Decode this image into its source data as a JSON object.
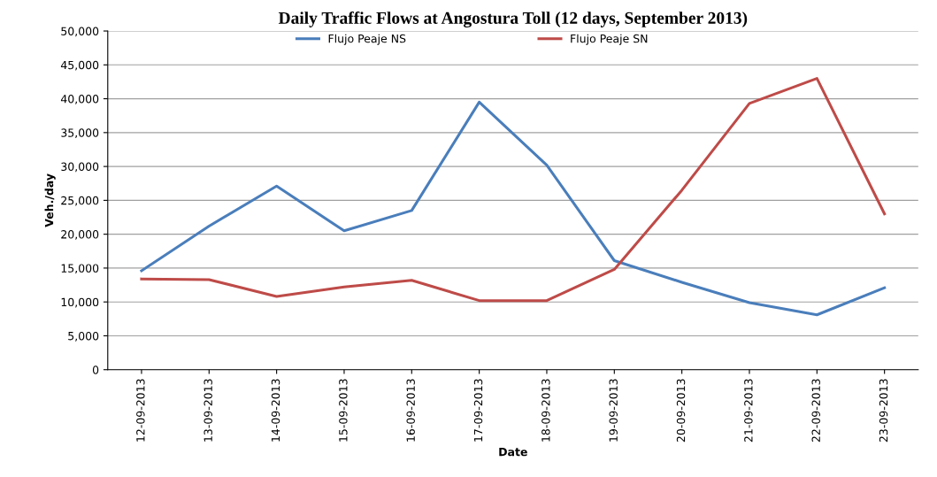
{
  "chart_data": {
    "type": "line",
    "title": "Daily Traffic Flows at Angostura Toll (12 days, September 2013)",
    "xlabel": "Date",
    "ylabel": "Veh./day",
    "categories": [
      "12-09-2013",
      "13-09-2013",
      "14-09-2013",
      "15-09-2013",
      "16-09-2013",
      "17-09-2013",
      "18-09-2013",
      "19-09-2013",
      "20-09-2013",
      "21-09-2013",
      "22-09-2013",
      "23-09-2013"
    ],
    "series": [
      {
        "name": "Flujo Peaje NS",
        "color": "#4a7ebb",
        "values": [
          14600,
          21200,
          27100,
          20500,
          23500,
          39500,
          30200,
          16100,
          12900,
          9900,
          8100,
          12100
        ]
      },
      {
        "name": "Flujo Peaje SN",
        "color": "#be4b48",
        "values": [
          13400,
          13300,
          10800,
          12200,
          13200,
          10200,
          10200,
          14800,
          26500,
          39300,
          43000,
          23000
        ]
      }
    ],
    "ylim": [
      0,
      50000
    ],
    "yticks": [
      {
        "value": 0,
        "label": "0"
      },
      {
        "value": 5000,
        "label": "5,000"
      },
      {
        "value": 10000,
        "label": "10,000"
      },
      {
        "value": 15000,
        "label": "15,000"
      },
      {
        "value": 20000,
        "label": "20,000"
      },
      {
        "value": 25000,
        "label": "25,000"
      },
      {
        "value": 30000,
        "label": "30,000"
      },
      {
        "value": 35000,
        "label": "35,000"
      },
      {
        "value": 40000,
        "label": "40,000"
      },
      {
        "value": 45000,
        "label": "45,000"
      },
      {
        "value": 50000,
        "label": "50,000"
      }
    ],
    "grid": "y",
    "legend": "top",
    "marker": "none",
    "line_style": "solid"
  }
}
